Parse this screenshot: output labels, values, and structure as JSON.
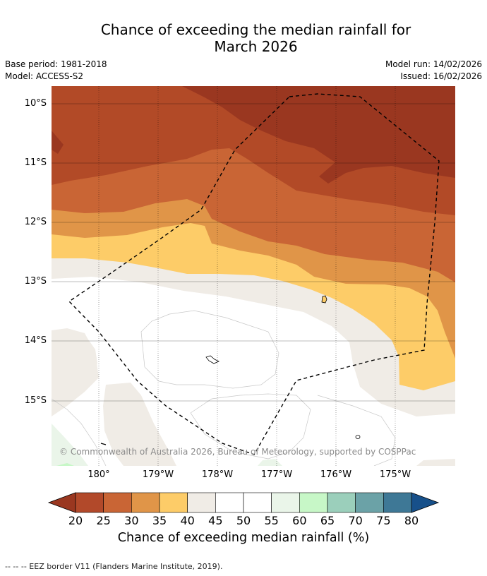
{
  "title": {
    "line1": "Chance of exceeding the median rainfall for",
    "line2": "March 2026"
  },
  "meta": {
    "base_period": "Base period: 1981-2018",
    "model": "Model: ACCESS-S2",
    "model_run": "Model run: 14/02/2026",
    "issued": "Issued: 16/02/2026"
  },
  "map": {
    "lat_labels": [
      "10°S",
      "11°S",
      "12°S",
      "13°S",
      "14°S",
      "15°S"
    ],
    "lon_labels": [
      "180°",
      "179°W",
      "178°W",
      "177°W",
      "176°W",
      "175°W"
    ],
    "copyright": "© Commonwealth of Australia 2026, Bureau of Meteorology, supported by COSPPac",
    "colors": {
      "c20": "#9a3720",
      "c25": "#b24a27",
      "c30": "#c96535",
      "c35": "#e09548",
      "c40": "#fdcc68",
      "c45": "#f0ece6",
      "c50": "#ffffff",
      "c60": "#eaf5e9",
      "c65": "#c7f7c7",
      "eez": "#000000"
    }
  },
  "colorbar": {
    "label": "Chance of exceeding median rainfall (%)",
    "ticks": [
      "20",
      "25",
      "30",
      "35",
      "40",
      "45",
      "50",
      "55",
      "60",
      "65",
      "70",
      "75",
      "80"
    ],
    "colors": [
      "#b2492a",
      "#c96535",
      "#e09548",
      "#fdcc68",
      "#f0ece6",
      "#ffffff",
      "#ffffff",
      "#eaf5e9",
      "#c7f7c7",
      "#9bcfbb",
      "#6ba2a7",
      "#3e7896"
    ],
    "low_color": "#9a3720",
    "high_color": "#17508a"
  },
  "footnote": "--  --  -- EEZ border V11 (Flanders Marine Institute, 2019)."
}
